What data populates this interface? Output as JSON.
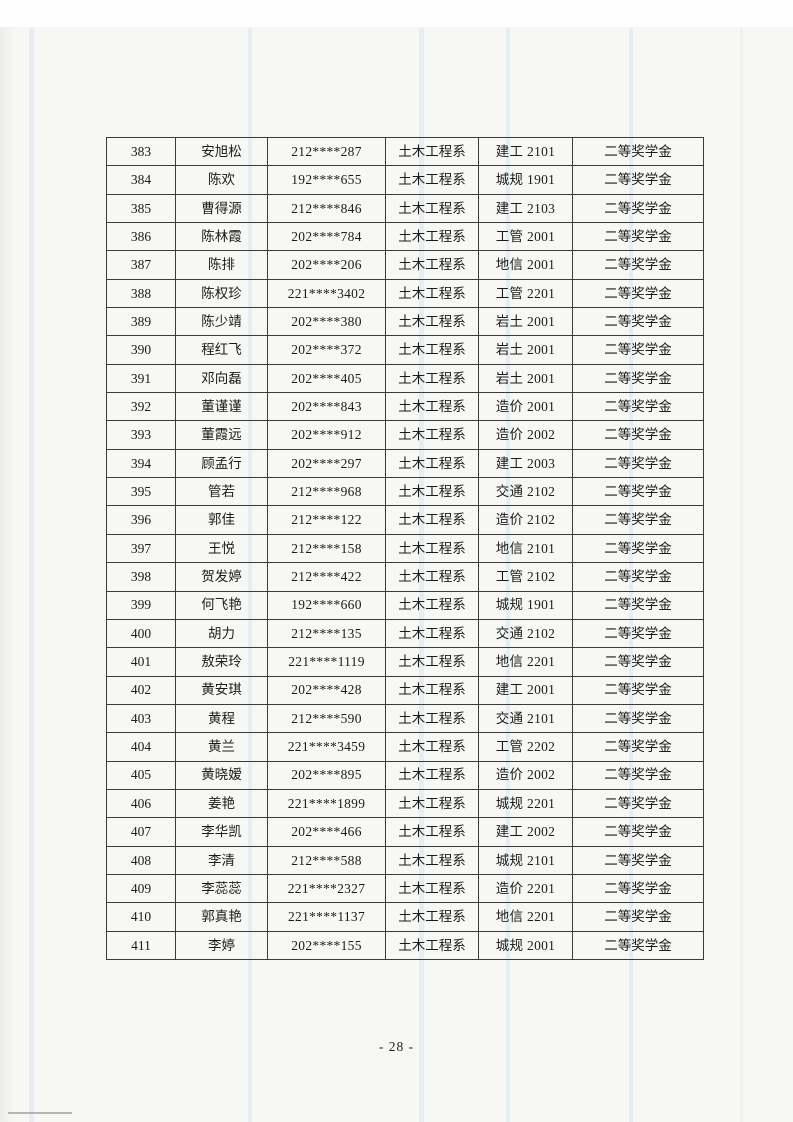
{
  "page": {
    "footer_page_number": "- 28 -"
  },
  "table": {
    "rows": [
      {
        "no": "383",
        "name": "安旭松",
        "student_id": "212****287",
        "department": "土木工程系",
        "class_name": "建工 2101",
        "award": "二等奖学金"
      },
      {
        "no": "384",
        "name": "陈欢",
        "student_id": "192****655",
        "department": "土木工程系",
        "class_name": "城规 1901",
        "award": "二等奖学金"
      },
      {
        "no": "385",
        "name": "曹得源",
        "student_id": "212****846",
        "department": "土木工程系",
        "class_name": "建工 2103",
        "award": "二等奖学金"
      },
      {
        "no": "386",
        "name": "陈林霞",
        "student_id": "202****784",
        "department": "土木工程系",
        "class_name": "工管 2001",
        "award": "二等奖学金"
      },
      {
        "no": "387",
        "name": "陈排",
        "student_id": "202****206",
        "department": "土木工程系",
        "class_name": "地信 2001",
        "award": "二等奖学金"
      },
      {
        "no": "388",
        "name": "陈权珍",
        "student_id": "221****3402",
        "department": "土木工程系",
        "class_name": "工管 2201",
        "award": "二等奖学金"
      },
      {
        "no": "389",
        "name": "陈少靖",
        "student_id": "202****380",
        "department": "土木工程系",
        "class_name": "岩土 2001",
        "award": "二等奖学金"
      },
      {
        "no": "390",
        "name": "程红飞",
        "student_id": "202****372",
        "department": "土木工程系",
        "class_name": "岩土 2001",
        "award": "二等奖学金"
      },
      {
        "no": "391",
        "name": "邓向磊",
        "student_id": "202****405",
        "department": "土木工程系",
        "class_name": "岩土 2001",
        "award": "二等奖学金"
      },
      {
        "no": "392",
        "name": "董谨谨",
        "student_id": "202****843",
        "department": "土木工程系",
        "class_name": "造价 2001",
        "award": "二等奖学金"
      },
      {
        "no": "393",
        "name": "董霞远",
        "student_id": "202****912",
        "department": "土木工程系",
        "class_name": "造价 2002",
        "award": "二等奖学金"
      },
      {
        "no": "394",
        "name": "顾孟行",
        "student_id": "202****297",
        "department": "土木工程系",
        "class_name": "建工 2003",
        "award": "二等奖学金"
      },
      {
        "no": "395",
        "name": "管若",
        "student_id": "212****968",
        "department": "土木工程系",
        "class_name": "交通 2102",
        "award": "二等奖学金"
      },
      {
        "no": "396",
        "name": "郭佳",
        "student_id": "212****122",
        "department": "土木工程系",
        "class_name": "造价 2102",
        "award": "二等奖学金"
      },
      {
        "no": "397",
        "name": "王悦",
        "student_id": "212****158",
        "department": "土木工程系",
        "class_name": "地信 2101",
        "award": "二等奖学金"
      },
      {
        "no": "398",
        "name": "贺发婷",
        "student_id": "212****422",
        "department": "土木工程系",
        "class_name": "工管 2102",
        "award": "二等奖学金"
      },
      {
        "no": "399",
        "name": "何飞艳",
        "student_id": "192****660",
        "department": "土木工程系",
        "class_name": "城规 1901",
        "award": "二等奖学金"
      },
      {
        "no": "400",
        "name": "胡力",
        "student_id": "212****135",
        "department": "土木工程系",
        "class_name": "交通 2102",
        "award": "二等奖学金"
      },
      {
        "no": "401",
        "name": "敖荣玲",
        "student_id": "221****1119",
        "department": "土木工程系",
        "class_name": "地信 2201",
        "award": "二等奖学金"
      },
      {
        "no": "402",
        "name": "黄安琪",
        "student_id": "202****428",
        "department": "土木工程系",
        "class_name": "建工 2001",
        "award": "二等奖学金"
      },
      {
        "no": "403",
        "name": "黄程",
        "student_id": "212****590",
        "department": "土木工程系",
        "class_name": "交通 2101",
        "award": "二等奖学金"
      },
      {
        "no": "404",
        "name": "黄兰",
        "student_id": "221****3459",
        "department": "土木工程系",
        "class_name": "工管 2202",
        "award": "二等奖学金"
      },
      {
        "no": "405",
        "name": "黄晓嫒",
        "student_id": "202****895",
        "department": "土木工程系",
        "class_name": "造价 2002",
        "award": "二等奖学金"
      },
      {
        "no": "406",
        "name": "姜艳",
        "student_id": "221****1899",
        "department": "土木工程系",
        "class_name": "城规 2201",
        "award": "二等奖学金"
      },
      {
        "no": "407",
        "name": "李华凯",
        "student_id": "202****466",
        "department": "土木工程系",
        "class_name": "建工 2002",
        "award": "二等奖学金"
      },
      {
        "no": "408",
        "name": "李清",
        "student_id": "212****588",
        "department": "土木工程系",
        "class_name": "城规 2101",
        "award": "二等奖学金"
      },
      {
        "no": "409",
        "name": "李蕊蕊",
        "student_id": "221****2327",
        "department": "土木工程系",
        "class_name": "造价 2201",
        "award": "二等奖学金"
      },
      {
        "no": "410",
        "name": "郭真艳",
        "student_id": "221****1137",
        "department": "土木工程系",
        "class_name": "地信 2201",
        "award": "二等奖学金"
      },
      {
        "no": "411",
        "name": "李婷",
        "student_id": "202****155",
        "department": "土木工程系",
        "class_name": "城规 2001",
        "award": "二等奖学金"
      }
    ]
  }
}
